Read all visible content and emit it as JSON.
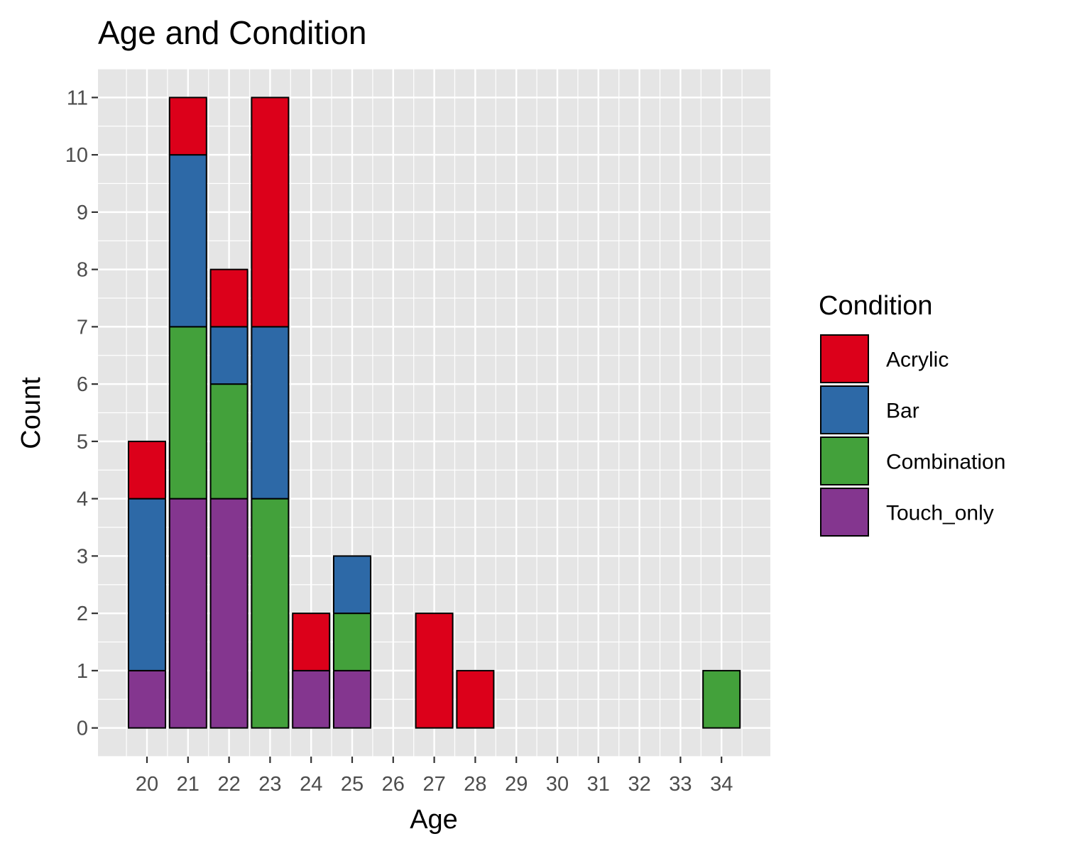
{
  "chart_data": {
    "type": "bar",
    "stacked": true,
    "title": "Age and Condition",
    "xlabel": "Age",
    "ylabel": "Count",
    "categories": [
      "20",
      "21",
      "22",
      "23",
      "24",
      "25",
      "26",
      "27",
      "28",
      "29",
      "30",
      "31",
      "32",
      "33",
      "34"
    ],
    "ylim": [
      -0.5,
      11.5
    ],
    "y_ticks": [
      "0",
      "1",
      "2",
      "3",
      "4",
      "5",
      "6",
      "7",
      "8",
      "9",
      "10",
      "11"
    ],
    "grid": true,
    "legend": {
      "title": "Condition",
      "position": "right"
    },
    "series": [
      {
        "name": "Touch_only",
        "color": "#84368F",
        "values": [
          1,
          4,
          4,
          0,
          1,
          1,
          0,
          0,
          0,
          0,
          0,
          0,
          0,
          0,
          0
        ]
      },
      {
        "name": "Combination",
        "color": "#43A13B",
        "values": [
          0,
          3,
          2,
          4,
          0,
          1,
          0,
          0,
          0,
          0,
          0,
          0,
          0,
          0,
          1
        ]
      },
      {
        "name": "Bar",
        "color": "#2D69A7",
        "values": [
          3,
          3,
          1,
          3,
          0,
          1,
          0,
          0,
          0,
          0,
          0,
          0,
          0,
          0,
          0
        ]
      },
      {
        "name": "Acrylic",
        "color": "#DC001A",
        "values": [
          1,
          1,
          1,
          4,
          1,
          0,
          0,
          2,
          1,
          0,
          0,
          0,
          0,
          0,
          0
        ]
      }
    ],
    "legend_order": [
      "Acrylic",
      "Bar",
      "Combination",
      "Touch_only"
    ],
    "panel_background": "#E5E5E5"
  }
}
